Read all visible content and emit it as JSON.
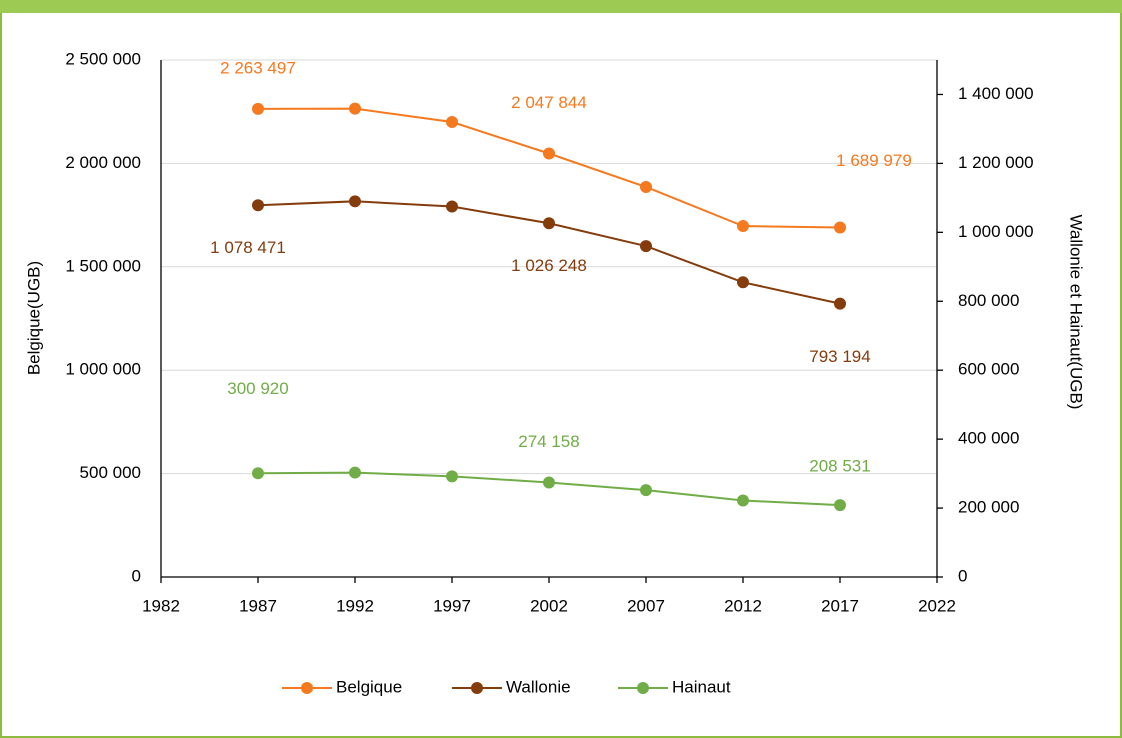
{
  "chart_data": {
    "type": "line",
    "y_label": "Belgique(UGB)",
    "y2_label": "Wallonie et Hainaut(UGB)",
    "x": [
      1987,
      1992,
      1997,
      2002,
      2007,
      2012,
      2017
    ],
    "xlim": [
      1982,
      2022
    ],
    "xticks": [
      1982,
      1987,
      1992,
      1997,
      2002,
      2007,
      2012,
      2017,
      2022
    ],
    "ylim": [
      0,
      2500000
    ],
    "yticks": [
      0,
      {
        "value": 500000,
        "label": "500 000"
      },
      {
        "value": 1000000,
        "label": "1 000 000"
      },
      {
        "value": 1500000,
        "label": "1 500 000"
      },
      {
        "value": 2000000,
        "label": "2 000 000"
      },
      {
        "value": 2500000,
        "label": "2 500 000"
      }
    ],
    "y2lim": [
      0,
      1500000
    ],
    "y2ticks": [
      0,
      {
        "value": 200000,
        "label": "200 000"
      },
      {
        "value": 400000,
        "label": "400 000"
      },
      {
        "value": 600000,
        "label": "600 000"
      },
      {
        "value": 800000,
        "label": "800 000"
      },
      {
        "value": 1000000,
        "label": "1 000 000"
      },
      {
        "value": 1200000,
        "label": "1 200 000"
      },
      {
        "value": 1400000,
        "label": "1 400 000"
      }
    ],
    "grid": true,
    "legend": "bottom",
    "series": [
      {
        "name": "Belgique",
        "color": "#f5791f",
        "values": [
          2263497,
          2265000,
          2200000,
          2047844,
          1886000,
          1697000,
          1689979
        ],
        "value_labels": [
          "2 263 497",
          null,
          null,
          "2 047 844",
          null,
          null,
          "1 689 979"
        ]
      },
      {
        "name": "Wallonie",
        "color": "#843c0c",
        "axis": "y2",
        "values": [
          1078471,
          1090000,
          1075000,
          1026248,
          960000,
          855000,
          793194
        ],
        "value_labels": [
          "1 078 471",
          null,
          null,
          "1 026 248",
          null,
          null,
          "793 194"
        ]
      },
      {
        "name": "Hainaut",
        "color": "#70ad47",
        "axis": "y2",
        "values": [
          300920,
          303000,
          292000,
          274158,
          252000,
          222000,
          208531
        ],
        "value_labels": [
          "300 920",
          null,
          null,
          "274 158",
          null,
          null,
          "208 531"
        ]
      }
    ]
  }
}
